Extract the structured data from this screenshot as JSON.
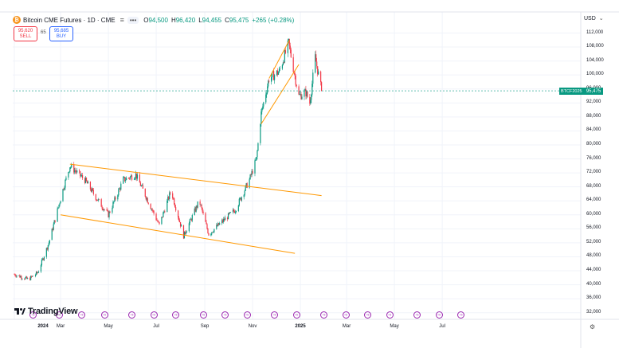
{
  "header": {
    "title": "Bitcoin CME Futures · 1D · CME",
    "logo_letter": "₿",
    "ohlc": [
      {
        "label": "O",
        "value": "94,500"
      },
      {
        "label": "H",
        "value": "96,420"
      },
      {
        "label": "L",
        "value": "94,455"
      },
      {
        "label": "C",
        "value": "95,475"
      }
    ],
    "change": "+265 (+0.28%)",
    "dots": "•••"
  },
  "trade": {
    "sell_price": "95,620",
    "sell_label": "SELL",
    "spread": "65",
    "buy_price": "95,685",
    "buy_label": "BUY"
  },
  "currency": "USD",
  "price_tag": {
    "symbol": "BTCF2025",
    "price": "95,475"
  },
  "branding": "TradingView",
  "y_axis": [
    "112,000",
    "108,000",
    "104,000",
    "100,000",
    "96,000",
    "92,000",
    "88,000",
    "84,000",
    "80,000",
    "76,000",
    "72,000",
    "68,000",
    "64,000",
    "60,000",
    "56,000",
    "52,000",
    "48,000",
    "44,000",
    "40,000",
    "36,000",
    "32,000"
  ],
  "x_axis": [
    {
      "label": "2024",
      "bold": true
    },
    {
      "label": "Mar",
      "bold": false
    },
    {
      "label": "May",
      "bold": false
    },
    {
      "label": "Jul",
      "bold": false
    },
    {
      "label": "Sep",
      "bold": false
    },
    {
      "label": "Nov",
      "bold": false
    },
    {
      "label": "2025",
      "bold": true
    },
    {
      "label": "Mar",
      "bold": false
    },
    {
      "label": "May",
      "bold": false
    },
    {
      "label": "Jul",
      "bold": false
    }
  ],
  "colors": {
    "up": "#089981",
    "down": "#f23645",
    "trendline": "#ff9800",
    "grid": "#f0f3fa",
    "events": "#9c27b0",
    "price_line": "#089981"
  },
  "chart_data": {
    "type": "candlestick",
    "symbol": "Bitcoin CME Futures",
    "interval": "1D",
    "ylim": [
      32000,
      114000
    ],
    "date_range": [
      "2024-01-02",
      "2025-07-31"
    ],
    "last_close": 95475,
    "ohlc_anchor_closes": [
      {
        "date": "2024-01-02",
        "close": 43000
      },
      {
        "date": "2024-01-20",
        "close": 41500
      },
      {
        "date": "2024-02-01",
        "close": 43500
      },
      {
        "date": "2024-02-15",
        "close": 52000
      },
      {
        "date": "2024-03-05",
        "close": 68000
      },
      {
        "date": "2024-03-13",
        "close": 74000
      },
      {
        "date": "2024-04-01",
        "close": 70000
      },
      {
        "date": "2024-04-15",
        "close": 65000
      },
      {
        "date": "2024-05-01",
        "close": 60000
      },
      {
        "date": "2024-05-20",
        "close": 70000
      },
      {
        "date": "2024-06-05",
        "close": 71500
      },
      {
        "date": "2024-07-05",
        "close": 57000
      },
      {
        "date": "2024-07-20",
        "close": 67000
      },
      {
        "date": "2024-08-05",
        "close": 54000
      },
      {
        "date": "2024-08-25",
        "close": 64000
      },
      {
        "date": "2024-09-06",
        "close": 54500
      },
      {
        "date": "2024-10-10",
        "close": 61500
      },
      {
        "date": "2024-10-28",
        "close": 70000
      },
      {
        "date": "2024-11-06",
        "close": 76000
      },
      {
        "date": "2024-11-12",
        "close": 89000
      },
      {
        "date": "2024-11-22",
        "close": 99000
      },
      {
        "date": "2024-12-05",
        "close": 101000
      },
      {
        "date": "2024-12-17",
        "close": 109000
      },
      {
        "date": "2024-12-30",
        "close": 94000
      },
      {
        "date": "2025-01-08",
        "close": 95000
      },
      {
        "date": "2025-01-13",
        "close": 92000
      },
      {
        "date": "2025-01-20",
        "close": 105000
      },
      {
        "date": "2025-01-28",
        "close": 95475
      }
    ],
    "trendlines": [
      {
        "name": "upper channel",
        "from": {
          "date": "2024-03-13",
          "price": 74500
        },
        "to": {
          "date": "2025-01-28",
          "price": 65500
        }
      },
      {
        "name": "lower channel",
        "from": {
          "date": "2024-03-01",
          "price": 60000
        },
        "to": {
          "date": "2024-12-25",
          "price": 49000
        }
      },
      {
        "name": "rising wedge upper",
        "from": {
          "date": "2024-11-22",
          "price": 99000
        },
        "to": {
          "date": "2024-12-18",
          "price": 110000
        }
      },
      {
        "name": "rising wedge lower",
        "from": {
          "date": "2024-11-12",
          "price": 86000
        },
        "to": {
          "date": "2024-12-30",
          "price": 103000
        }
      }
    ],
    "event_markers": [
      "2024-01-26",
      "2024-02-28",
      "2024-03-28",
      "2024-04-26",
      "2024-05-31",
      "2024-06-28",
      "2024-07-26",
      "2024-08-30",
      "2024-09-27",
      "2024-10-25",
      "2024-11-29",
      "2024-12-27",
      "2025-01-31",
      "2025-02-28",
      "2025-03-28",
      "2025-04-25",
      "2025-05-30",
      "2025-06-27",
      "2025-07-25"
    ],
    "grid": true
  }
}
